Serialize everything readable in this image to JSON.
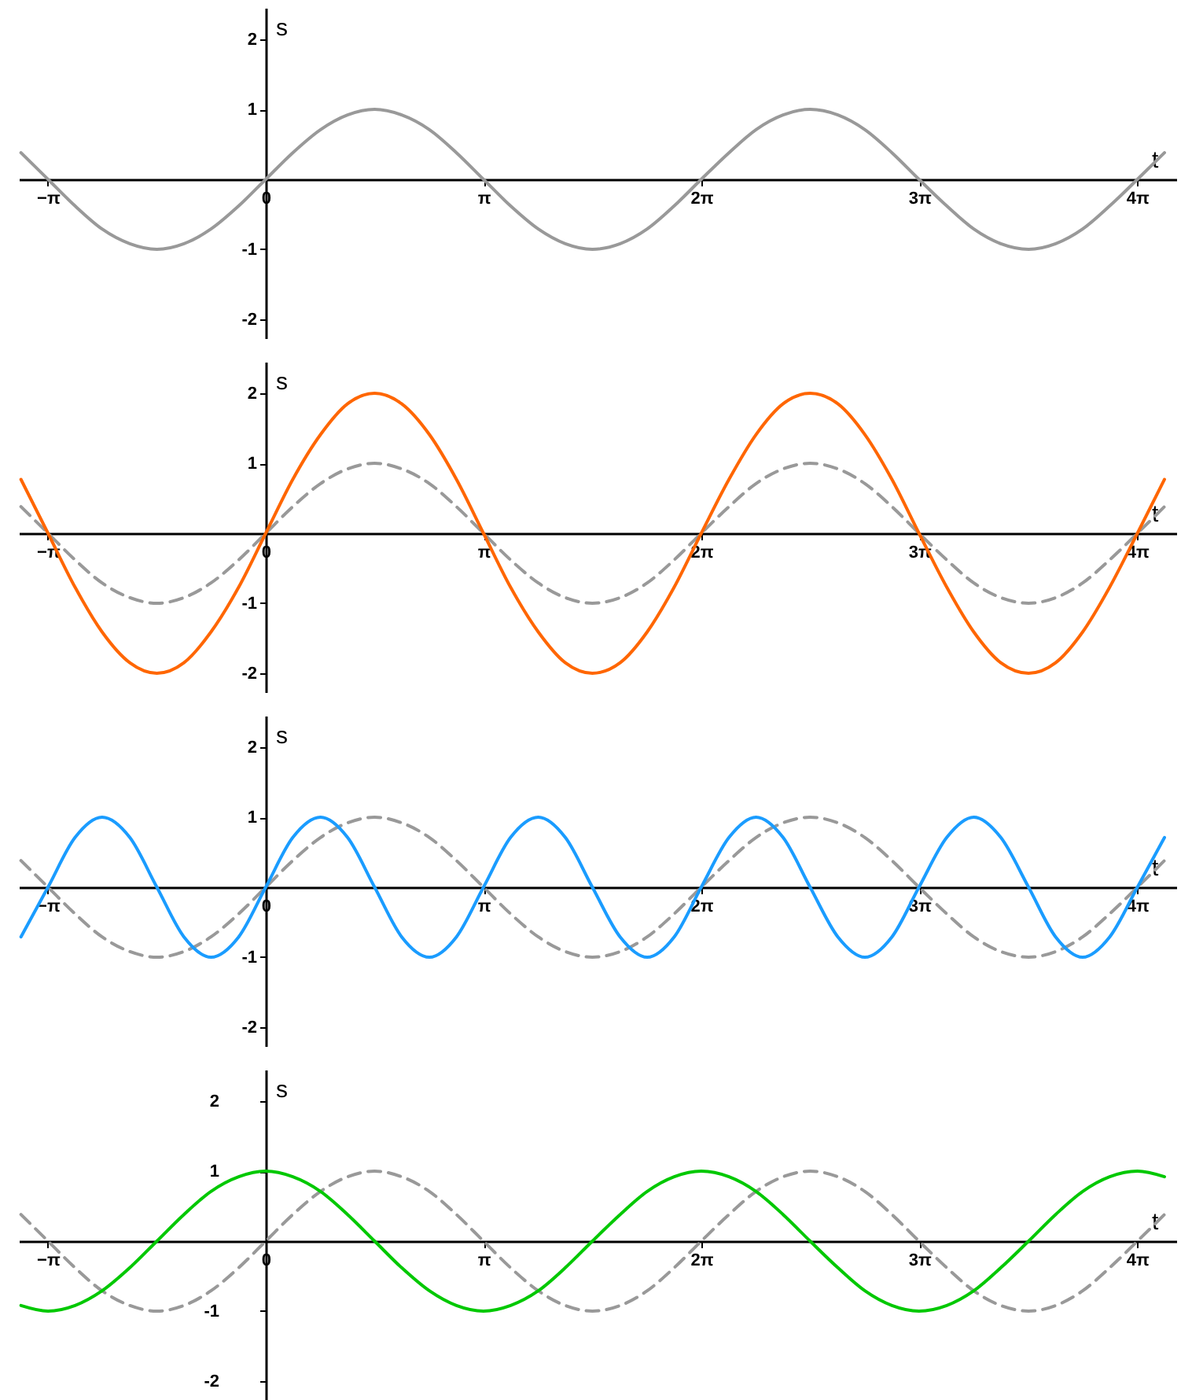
{
  "chart_data": [
    {
      "type": "line",
      "x": [
        -3.53,
        -3.14,
        -2.75,
        -2.36,
        -1.96,
        -1.57,
        -1.18,
        -0.79,
        -0.39,
        0,
        0.39,
        0.79,
        1.18,
        1.57,
        1.96,
        2.36,
        2.75,
        3.14,
        3.53,
        3.93,
        4.32,
        4.71,
        5.11,
        5.5,
        5.89,
        6.28,
        6.68,
        7.07,
        7.46,
        7.85,
        8.25,
        8.64,
        9.03,
        9.42,
        9.82,
        10.21,
        10.6,
        11.0,
        11.39,
        11.78,
        12.17,
        12.57,
        12.96
      ],
      "xlabel": "t",
      "ylabel": "s",
      "xlim": [
        -3.56,
        13.13
      ],
      "ylim": [
        -2.27,
        2.45
      ],
      "xticks": [
        {
          "value": -3.1416,
          "label": "−π"
        },
        {
          "value": 0,
          "label": "0"
        },
        {
          "value": 3.1416,
          "label": "π"
        },
        {
          "value": 6.2832,
          "label": "2π"
        },
        {
          "value": 9.4248,
          "label": "3π"
        },
        {
          "value": 12.5664,
          "label": "4π"
        }
      ],
      "yticks": [
        -2,
        -1,
        1,
        2
      ],
      "series": [
        {
          "color": "#999999",
          "line_style": "solid",
          "values": [
            0.38,
            0,
            -0.38,
            -0.71,
            -0.92,
            -1,
            -0.92,
            -0.71,
            -0.38,
            0,
            0.38,
            0.71,
            0.92,
            1,
            0.92,
            0.71,
            0.38,
            0,
            -0.38,
            -0.71,
            -0.92,
            -1,
            -0.92,
            -0.71,
            -0.38,
            0,
            0.38,
            0.71,
            0.92,
            1,
            0.92,
            0.71,
            0.38,
            0,
            -0.38,
            -0.71,
            -0.92,
            -1,
            -0.92,
            -0.71,
            -0.38,
            0,
            0.38
          ]
        }
      ]
    },
    {
      "type": "line",
      "x": [
        -3.53,
        -3.14,
        -2.75,
        -2.36,
        -1.96,
        -1.57,
        -1.18,
        -0.79,
        -0.39,
        0,
        0.39,
        0.79,
        1.18,
        1.57,
        1.96,
        2.36,
        2.75,
        3.14,
        3.53,
        3.93,
        4.32,
        4.71,
        5.11,
        5.5,
        5.89,
        6.28,
        6.68,
        7.07,
        7.46,
        7.85,
        8.25,
        8.64,
        9.03,
        9.42,
        9.82,
        10.21,
        10.6,
        11.0,
        11.39,
        11.78,
        12.17,
        12.57,
        12.96
      ],
      "xlabel": "t",
      "ylabel": "s",
      "xlim": [
        -3.56,
        13.13
      ],
      "ylim": [
        -2.27,
        2.45
      ],
      "xticks": [
        {
          "value": -3.1416,
          "label": "−π"
        },
        {
          "value": 0,
          "label": "0"
        },
        {
          "value": 3.1416,
          "label": "π"
        },
        {
          "value": 6.2832,
          "label": "2π"
        },
        {
          "value": 9.4248,
          "label": "3π"
        },
        {
          "value": 12.5664,
          "label": "4π"
        }
      ],
      "yticks": [
        -2,
        -1,
        1,
        2
      ],
      "series": [
        {
          "color": "#999999",
          "line_style": "dashed",
          "values": [
            0.38,
            0,
            -0.38,
            -0.71,
            -0.92,
            -1,
            -0.92,
            -0.71,
            -0.38,
            0,
            0.38,
            0.71,
            0.92,
            1,
            0.92,
            0.71,
            0.38,
            0,
            -0.38,
            -0.71,
            -0.92,
            -1,
            -0.92,
            -0.71,
            -0.38,
            0,
            0.38,
            0.71,
            0.92,
            1,
            0.92,
            0.71,
            0.38,
            0,
            -0.38,
            -0.71,
            -0.92,
            -1,
            -0.92,
            -0.71,
            -0.38,
            0,
            0.38
          ]
        },
        {
          "color": "#ff6600",
          "line_style": "solid",
          "values": [
            0.77,
            0,
            -0.77,
            -1.41,
            -1.85,
            -2,
            -1.85,
            -1.41,
            -0.77,
            0,
            0.77,
            1.41,
            1.85,
            2,
            1.85,
            1.41,
            0.77,
            0,
            -0.77,
            -1.41,
            -1.85,
            -2,
            -1.85,
            -1.41,
            -0.77,
            0,
            0.77,
            1.41,
            1.85,
            2,
            1.85,
            1.41,
            0.77,
            0,
            -0.77,
            -1.41,
            -1.85,
            -2,
            -1.85,
            -1.41,
            -0.77,
            0,
            0.77
          ]
        }
      ]
    },
    {
      "type": "line",
      "x": [
        -3.53,
        -3.14,
        -2.75,
        -2.36,
        -1.96,
        -1.57,
        -1.18,
        -0.79,
        -0.39,
        0,
        0.39,
        0.79,
        1.18,
        1.57,
        1.96,
        2.36,
        2.75,
        3.14,
        3.53,
        3.93,
        4.32,
        4.71,
        5.11,
        5.5,
        5.89,
        6.28,
        6.68,
        7.07,
        7.46,
        7.85,
        8.25,
        8.64,
        9.03,
        9.42,
        9.82,
        10.21,
        10.6,
        11.0,
        11.39,
        11.78,
        12.17,
        12.57,
        12.96
      ],
      "xlabel": "t",
      "ylabel": "s",
      "xlim": [
        -3.56,
        13.13
      ],
      "ylim": [
        -2.27,
        2.45
      ],
      "xticks": [
        {
          "value": -3.1416,
          "label": "−π"
        },
        {
          "value": 0,
          "label": "0"
        },
        {
          "value": 3.1416,
          "label": "π"
        },
        {
          "value": 6.2832,
          "label": "2π"
        },
        {
          "value": 9.4248,
          "label": "3π"
        },
        {
          "value": 12.5664,
          "label": "4π"
        }
      ],
      "yticks": [
        -2,
        -1,
        1,
        2
      ],
      "series": [
        {
          "color": "#999999",
          "line_style": "dashed",
          "values": [
            0.38,
            0,
            -0.38,
            -0.71,
            -0.92,
            -1,
            -0.92,
            -0.71,
            -0.38,
            0,
            0.38,
            0.71,
            0.92,
            1,
            0.92,
            0.71,
            0.38,
            0,
            -0.38,
            -0.71,
            -0.92,
            -1,
            -0.92,
            -0.71,
            -0.38,
            0,
            0.38,
            0.71,
            0.92,
            1,
            0.92,
            0.71,
            0.38,
            0,
            -0.38,
            -0.71,
            -0.92,
            -1,
            -0.92,
            -0.71,
            -0.38,
            0,
            0.38
          ]
        },
        {
          "color": "#1a9cff",
          "line_style": "solid",
          "values": [
            -0.71,
            0,
            0.71,
            1,
            0.71,
            0,
            -0.71,
            -1,
            -0.71,
            0,
            0.71,
            1,
            0.71,
            0,
            -0.71,
            -1,
            -0.71,
            0,
            0.71,
            1,
            0.71,
            0,
            -0.71,
            -1,
            -0.71,
            0,
            0.71,
            1,
            0.71,
            0,
            -0.71,
            -1,
            -0.71,
            0,
            0.71,
            1,
            0.71,
            0,
            -0.71,
            -1,
            -0.71,
            0,
            0.71
          ]
        }
      ]
    },
    {
      "type": "line",
      "x": [
        -3.53,
        -3.14,
        -2.75,
        -2.36,
        -1.96,
        -1.57,
        -1.18,
        -0.79,
        -0.39,
        0,
        0.39,
        0.79,
        1.18,
        1.57,
        1.96,
        2.36,
        2.75,
        3.14,
        3.53,
        3.93,
        4.32,
        4.71,
        5.11,
        5.5,
        5.89,
        6.28,
        6.68,
        7.07,
        7.46,
        7.85,
        8.25,
        8.64,
        9.03,
        9.42,
        9.82,
        10.21,
        10.6,
        11.0,
        11.39,
        11.78,
        12.17,
        12.57,
        12.96
      ],
      "xlabel": "t",
      "ylabel": "s",
      "xlim": [
        -3.56,
        13.13
      ],
      "ylim": [
        -2.27,
        2.45
      ],
      "xticks": [
        {
          "value": -3.1416,
          "label": "−π"
        },
        {
          "value": 0,
          "label": "0"
        },
        {
          "value": 3.1416,
          "label": "π"
        },
        {
          "value": 6.2832,
          "label": "2π"
        },
        {
          "value": 9.4248,
          "label": "3π"
        },
        {
          "value": 12.5664,
          "label": "4π"
        }
      ],
      "yticks": [
        -2,
        -1,
        1,
        2
      ],
      "series": [
        {
          "color": "#999999",
          "line_style": "dashed",
          "values": [
            0.38,
            0,
            -0.38,
            -0.71,
            -0.92,
            -1,
            -0.92,
            -0.71,
            -0.38,
            0,
            0.38,
            0.71,
            0.92,
            1,
            0.92,
            0.71,
            0.38,
            0,
            -0.38,
            -0.71,
            -0.92,
            -1,
            -0.92,
            -0.71,
            -0.38,
            0,
            0.38,
            0.71,
            0.92,
            1,
            0.92,
            0.71,
            0.38,
            0,
            -0.38,
            -0.71,
            -0.92,
            -1,
            -0.92,
            -0.71,
            -0.38,
            0,
            0.38
          ]
        },
        {
          "color": "#00c800",
          "line_style": "solid",
          "values": [
            -0.92,
            -1,
            -0.92,
            -0.71,
            -0.38,
            0,
            0.38,
            0.71,
            0.92,
            1,
            0.92,
            0.71,
            0.38,
            0,
            -0.38,
            -0.71,
            -0.92,
            -1,
            -0.92,
            -0.71,
            -0.38,
            0,
            0.38,
            0.71,
            0.92,
            1,
            0.92,
            0.71,
            0.38,
            0,
            -0.38,
            -0.71,
            -0.92,
            -1,
            -0.92,
            -0.71,
            -0.38,
            0,
            0.38,
            0.71,
            0.92,
            1,
            0.92
          ]
        }
      ]
    }
  ]
}
